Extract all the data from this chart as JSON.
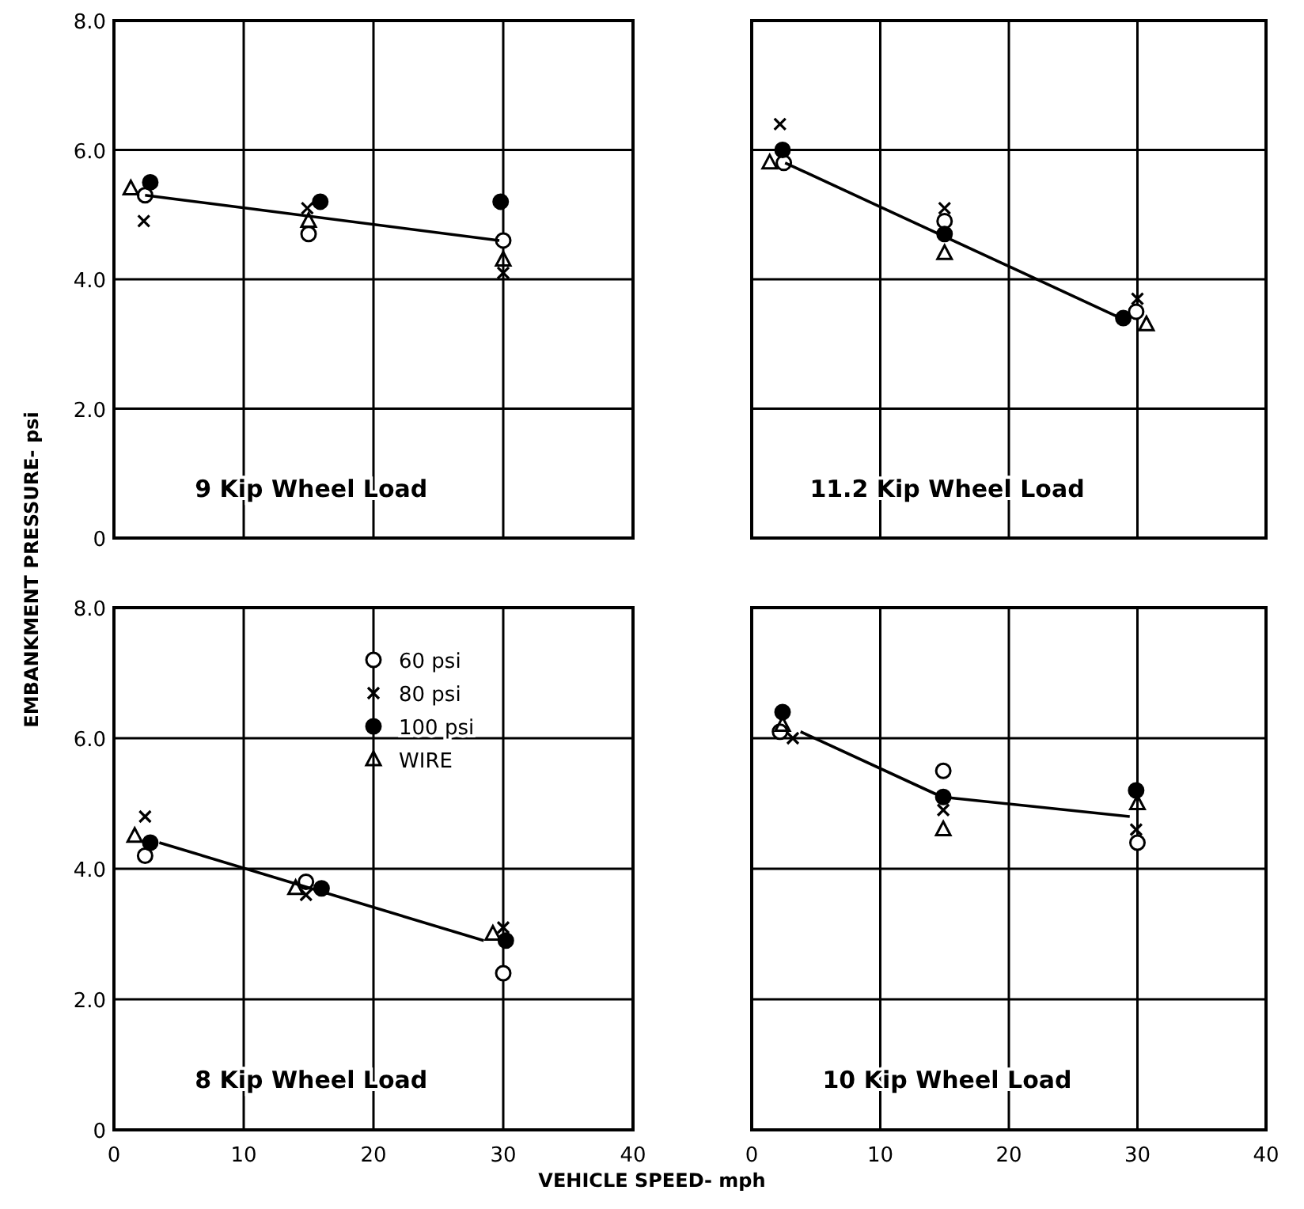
{
  "chart_data": [
    {
      "type": "scatter",
      "title": "9 Kip Wheel Load",
      "ylabel": "EMBANKMENT PRESSURE- psi",
      "xlim": [
        0,
        40
      ],
      "ylim": [
        0,
        8
      ],
      "xticks": [
        0,
        10,
        20,
        30,
        40
      ],
      "yticks": [
        0,
        {
          "value": 2,
          "label": "2.0"
        },
        {
          "value": 4,
          "label": "4.0"
        },
        {
          "value": 6,
          "label": "6.0"
        },
        {
          "value": 8,
          "label": "8.0"
        }
      ],
      "grid": true,
      "legend": false,
      "tick_labels": "y",
      "series": [
        {
          "color": "#ffffff",
          "marker": "circle",
          "x": [
            2.4,
            15,
            30
          ],
          "values": [
            5.3,
            4.7,
            4.6
          ]
        },
        {
          "color": "#000000",
          "marker": "cross",
          "x": [
            2.3,
            14.9,
            30
          ],
          "values": [
            4.9,
            5.1,
            4.1
          ]
        },
        {
          "color": "#000000",
          "marker": "circle",
          "x": [
            2.8,
            15.9,
            29.8
          ],
          "values": [
            5.5,
            5.2,
            5.2
          ]
        },
        {
          "color": "#000000",
          "marker": "triangle",
          "x": [
            1.3,
            15,
            30
          ],
          "values": [
            5.4,
            4.9,
            4.3
          ]
        },
        {
          "type": "line",
          "color": "#000000",
          "marker": "none",
          "x": [
            2.4,
            29.7
          ],
          "values": [
            5.3,
            4.6
          ]
        }
      ]
    },
    {
      "type": "scatter",
      "title": "11.2 Kip Wheel Load",
      "xlim": [
        0,
        40
      ],
      "ylim": [
        0,
        8
      ],
      "xticks": [
        0,
        10,
        20,
        30,
        40
      ],
      "yticks": [
        0,
        2,
        4,
        6,
        8
      ],
      "grid": true,
      "legend": false,
      "tick_labels": false,
      "series": [
        {
          "color": "#ffffff",
          "marker": "circle",
          "x": [
            2.5,
            15,
            29.9
          ],
          "values": [
            5.8,
            4.9,
            3.5
          ]
        },
        {
          "color": "#000000",
          "marker": "cross",
          "x": [
            2.2,
            15,
            30
          ],
          "values": [
            6.4,
            5.1,
            3.7
          ]
        },
        {
          "color": "#000000",
          "marker": "circle",
          "x": [
            2.4,
            15,
            28.9
          ],
          "values": [
            6,
            4.7,
            3.4
          ]
        },
        {
          "color": "#000000",
          "marker": "triangle",
          "x": [
            1.4,
            15,
            30.7
          ],
          "values": [
            5.8,
            4.4,
            3.3
          ]
        },
        {
          "type": "line",
          "color": "#000000",
          "marker": "none",
          "x": [
            2.6,
            28.7
          ],
          "values": [
            5.8,
            3.4
          ]
        }
      ]
    },
    {
      "type": "scatter",
      "title": "8 Kip Wheel Load",
      "xlabel": "VEHICLE SPEED- mph",
      "xlim": [
        0,
        40
      ],
      "ylim": [
        0,
        8
      ],
      "xticks": [
        0,
        10,
        20,
        30,
        40
      ],
      "yticks": [
        0,
        {
          "value": 2,
          "label": "2.0"
        },
        {
          "value": 4,
          "label": "4.0"
        },
        {
          "value": 6,
          "label": "6.0"
        },
        {
          "value": 8,
          "label": "8.0"
        }
      ],
      "grid": true,
      "legend": "top right",
      "series": [
        {
          "name": "60 psi",
          "color": "#ffffff",
          "marker": "circle",
          "x": [
            2.4,
            14.8,
            30
          ],
          "values": [
            4.2,
            3.8,
            2.4
          ]
        },
        {
          "name": "80 psi",
          "color": "#000000",
          "marker": "cross",
          "x": [
            2.4,
            14.8,
            30
          ],
          "values": [
            4.8,
            3.6,
            3.1
          ]
        },
        {
          "name": "100 psi",
          "color": "#000000",
          "marker": "circle",
          "x": [
            2.8,
            16,
            30.2
          ],
          "values": [
            4.4,
            3.7,
            2.9
          ]
        },
        {
          "name": "WIRE",
          "color": "#000000",
          "marker": "triangle",
          "x": [
            1.6,
            14,
            29.2
          ],
          "values": [
            4.5,
            3.7,
            3
          ]
        },
        {
          "type": "line",
          "color": "#000000",
          "marker": "none",
          "x": [
            3.5,
            28.5
          ],
          "values": [
            4.4,
            2.9
          ]
        }
      ]
    },
    {
      "type": "scatter",
      "title": "10 Kip Wheel Load",
      "xlim": [
        0,
        40
      ],
      "ylim": [
        0,
        8
      ],
      "xticks": [
        0,
        10,
        20,
        30,
        40
      ],
      "yticks": [
        0,
        2,
        4,
        6,
        8
      ],
      "grid": true,
      "legend": false,
      "tick_labels": "x",
      "series": [
        {
          "color": "#ffffff",
          "marker": "circle",
          "x": [
            2.2,
            14.9,
            30
          ],
          "values": [
            6.1,
            5.5,
            4.4
          ]
        },
        {
          "color": "#000000",
          "marker": "cross",
          "x": [
            3.2,
            14.9,
            29.9
          ],
          "values": [
            6,
            4.9,
            4.6
          ]
        },
        {
          "color": "#000000",
          "marker": "circle",
          "x": [
            2.4,
            14.9,
            29.9
          ],
          "values": [
            6.4,
            5.1,
            5.2
          ]
        },
        {
          "color": "#000000",
          "marker": "triangle",
          "x": [
            2.4,
            14.9,
            30
          ],
          "values": [
            6.2,
            4.6,
            5
          ]
        },
        {
          "type": "line",
          "color": "#000000",
          "marker": "none",
          "x": [
            3.8,
            14.8,
            29.4
          ],
          "values": [
            6.1,
            5.1,
            4.8
          ]
        }
      ]
    }
  ]
}
